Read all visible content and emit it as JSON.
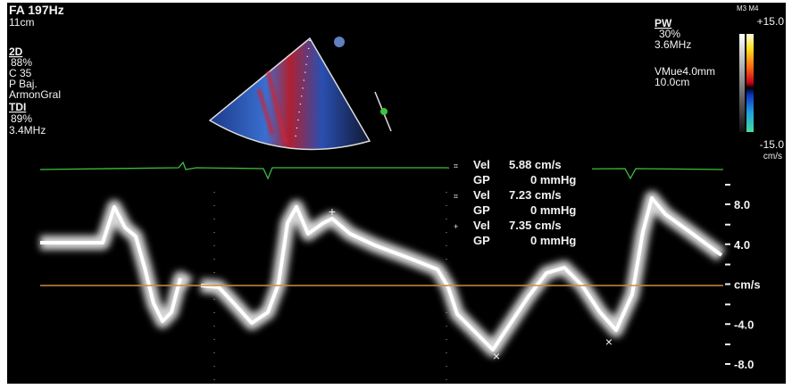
{
  "left_panel": {
    "header": "FA 197Hz",
    "depth": "11cm",
    "mode_2d": "2D",
    "gain_2d": "88%",
    "contrast": "C 35",
    "power": "P Baj.",
    "preset": "ArmonGral",
    "mode_tdi": "TDI",
    "gain_tdi": "89%",
    "freq_tdi": "3.4MHz"
  },
  "right_panel": {
    "mode_pw": "PW",
    "gain_pw": "30%",
    "freq_pw": "3.6MHz",
    "sample_volume": "VMue4.0mm",
    "gate_depth": "10.0cm"
  },
  "color_bar": {
    "maps": "M3 M4",
    "top": "+15.0",
    "bottom": "-15.0",
    "unit": "cm/s"
  },
  "measurements": [
    {
      "vel_label": "Vel",
      "vel_value": "5.88 cm/s",
      "gp_label": "GP",
      "gp_value": "0 mmHg"
    },
    {
      "vel_label": "Vel",
      "vel_value": "7.23 cm/s",
      "gp_label": "GP",
      "gp_value": "0 mmHg"
    },
    {
      "vel_label": "Vel",
      "vel_value": "7.35 cm/s",
      "gp_label": "GP",
      "gp_value": "0 mmHg"
    }
  ],
  "velocity_scale": [
    "8.0",
    "4.0",
    "cm/s",
    "-4.0",
    "-8.0"
  ]
}
